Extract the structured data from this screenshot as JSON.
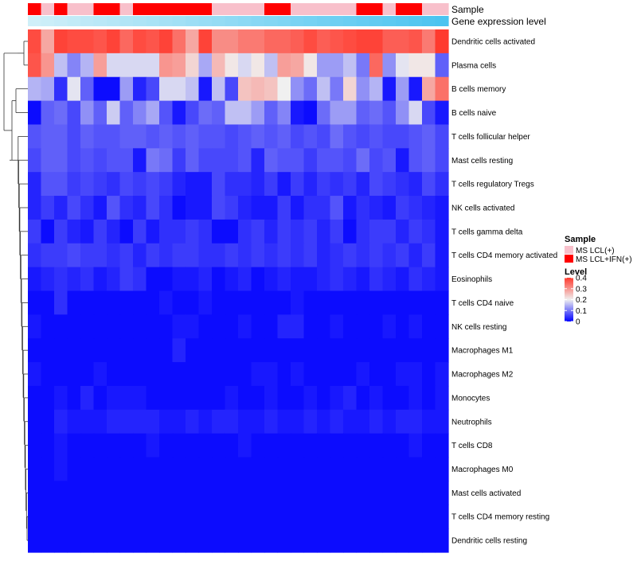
{
  "chart_data": {
    "type": "heatmap",
    "annotation_tracks": [
      {
        "label": "Sample",
        "values": [
          "MS LCL+IFN(+)",
          "MS LCL(+)",
          "MS LCL+IFN(+)",
          "MS LCL(+)",
          "MS LCL(+)",
          "MS LCL+IFN(+)",
          "MS LCL+IFN(+)",
          "MS LCL(+)",
          "MS LCL+IFN(+)",
          "MS LCL+IFN(+)",
          "MS LCL+IFN(+)",
          "MS LCL+IFN(+)",
          "MS LCL+IFN(+)",
          "MS LCL+IFN(+)",
          "MS LCL(+)",
          "MS LCL(+)",
          "MS LCL(+)",
          "MS LCL(+)",
          "MS LCL+IFN(+)",
          "MS LCL+IFN(+)",
          "MS LCL(+)",
          "MS LCL(+)",
          "MS LCL(+)",
          "MS LCL(+)",
          "MS LCL(+)",
          "MS LCL+IFN(+)",
          "MS LCL+IFN(+)",
          "MS LCL(+)",
          "MS LCL+IFN(+)",
          "MS LCL+IFN(+)",
          "MS LCL(+)",
          "MS LCL(+)"
        ]
      },
      {
        "label": "Gene expression level",
        "values": [
          0,
          0.03,
          0.06,
          0.1,
          0.13,
          0.16,
          0.19,
          0.23,
          0.26,
          0.29,
          0.32,
          0.35,
          0.39,
          0.42,
          0.45,
          0.48,
          0.52,
          0.55,
          0.58,
          0.61,
          0.65,
          0.68,
          0.71,
          0.74,
          0.77,
          0.81,
          0.84,
          0.87,
          0.9,
          0.94,
          0.97,
          1
        ]
      }
    ],
    "rows": [
      "Dendritic cells activated",
      "Plasma cells",
      "B cells memory",
      "B cells naive",
      "T cells follicular helper",
      "Mast cells resting",
      "T cells regulatory  Tregs",
      "NK cells activated",
      "T cells gamma delta",
      "T cells CD4 memory activated",
      "Eosinophils",
      "T cells CD4 naive",
      "NK cells resting",
      "Macrophages M1",
      "Macrophages M2",
      "Monocytes",
      "Neutrophils",
      "T cells CD8",
      "Macrophages M0",
      "Mast cells activated",
      "T cells CD4 memory resting",
      "Dendritic cells resting"
    ],
    "n_columns": 32,
    "values": [
      [
        0.38,
        0.28,
        0.39,
        0.38,
        0.38,
        0.37,
        0.39,
        0.35,
        0.38,
        0.37,
        0.39,
        0.34,
        0.28,
        0.39,
        0.31,
        0.31,
        0.33,
        0.33,
        0.35,
        0.35,
        0.36,
        0.38,
        0.36,
        0.37,
        0.38,
        0.39,
        0.39,
        0.36,
        0.36,
        0.37,
        0.33,
        0.4
      ],
      [
        0.37,
        0.3,
        0.16,
        0.11,
        0.15,
        0.29,
        0.18,
        0.18,
        0.18,
        0.18,
        0.3,
        0.29,
        0.23,
        0.14,
        0.26,
        0.21,
        0.18,
        0.21,
        0.16,
        0.29,
        0.28,
        0.21,
        0.13,
        0.13,
        0.16,
        0.1,
        0.35,
        0.12,
        0.19,
        0.21,
        0.21,
        0.08
      ],
      [
        0.15,
        0.14,
        0.04,
        0.19,
        0.08,
        0.01,
        0.01,
        0.13,
        0.03,
        0.06,
        0.18,
        0.18,
        0.16,
        0.02,
        0.16,
        0.06,
        0.25,
        0.26,
        0.25,
        0.2,
        0.12,
        0.09,
        0.16,
        0.1,
        0.23,
        0.12,
        0.15,
        0.02,
        0.13,
        0.02,
        0.28,
        0.34
      ],
      [
        0.01,
        0.08,
        0.09,
        0.06,
        0.12,
        0.08,
        0.17,
        0.08,
        0.11,
        0.14,
        0.07,
        0.02,
        0.06,
        0.09,
        0.08,
        0.16,
        0.16,
        0.13,
        0.08,
        0.11,
        0.02,
        0.01,
        0.09,
        0.13,
        0.13,
        0.08,
        0.09,
        0.07,
        0.12,
        0.18,
        0.06,
        0.02
      ],
      [
        0.07,
        0.08,
        0.08,
        0.06,
        0.08,
        0.07,
        0.07,
        0.08,
        0.08,
        0.07,
        0.08,
        0.07,
        0.08,
        0.07,
        0.07,
        0.06,
        0.07,
        0.08,
        0.07,
        0.08,
        0.06,
        0.07,
        0.06,
        0.09,
        0.07,
        0.06,
        0.07,
        0.06,
        0.06,
        0.07,
        0.08,
        0.06
      ],
      [
        0.06,
        0.08,
        0.08,
        0.06,
        0.07,
        0.06,
        0.07,
        0.07,
        0.02,
        0.1,
        0.09,
        0.05,
        0.08,
        0.06,
        0.06,
        0.06,
        0.07,
        0.03,
        0.08,
        0.07,
        0.07,
        0.05,
        0.07,
        0.07,
        0.06,
        0.09,
        0.06,
        0.07,
        0.02,
        0.07,
        0.08,
        0.06
      ],
      [
        0.03,
        0.07,
        0.07,
        0.05,
        0.06,
        0.05,
        0.04,
        0.06,
        0.05,
        0.06,
        0.05,
        0.03,
        0.02,
        0.02,
        0.06,
        0.04,
        0.04,
        0.03,
        0.05,
        0.02,
        0.05,
        0.03,
        0.05,
        0.04,
        0.05,
        0.03,
        0.06,
        0.05,
        0.04,
        0.03,
        0.06,
        0.04
      ],
      [
        0.03,
        0.05,
        0.03,
        0.06,
        0.04,
        0.02,
        0.07,
        0.04,
        0.03,
        0.06,
        0.04,
        0.01,
        0.02,
        0.02,
        0.06,
        0.05,
        0.03,
        0.02,
        0.02,
        0.05,
        0.02,
        0.04,
        0.04,
        0.07,
        0.02,
        0.04,
        0.03,
        0.02,
        0.05,
        0.04,
        0.03,
        0.02
      ],
      [
        0.05,
        0.01,
        0.05,
        0.03,
        0.02,
        0.05,
        0.03,
        0.01,
        0.05,
        0.02,
        0.04,
        0.04,
        0.05,
        0.04,
        0.01,
        0.01,
        0.04,
        0.05,
        0.03,
        0.05,
        0.04,
        0.05,
        0.03,
        0.05,
        0.01,
        0.04,
        0.05,
        0.05,
        0.03,
        0.05,
        0.04,
        0.02
      ],
      [
        0.04,
        0.05,
        0.05,
        0.06,
        0.05,
        0.05,
        0.04,
        0.05,
        0.03,
        0.05,
        0.04,
        0.05,
        0.05,
        0.04,
        0.04,
        0.05,
        0.04,
        0.05,
        0.04,
        0.05,
        0.04,
        0.05,
        0.03,
        0.04,
        0.05,
        0.04,
        0.05,
        0.04,
        0.05,
        0.03,
        0.05,
        0.02
      ],
      [
        0.02,
        0.03,
        0.04,
        0.03,
        0.04,
        0.02,
        0.03,
        0.05,
        0.04,
        0.01,
        0.01,
        0.02,
        0.02,
        0.03,
        0.01,
        0.02,
        0.03,
        0.01,
        0.02,
        0.03,
        0.02,
        0.02,
        0.03,
        0.04,
        0.03,
        0.02,
        0.04,
        0.03,
        0.02,
        0.04,
        0.03,
        0.02
      ],
      [
        0.01,
        0.01,
        0.04,
        0.01,
        0.01,
        0.01,
        0.01,
        0.01,
        0.01,
        0.01,
        0.02,
        0.01,
        0.01,
        0.02,
        0.01,
        0.01,
        0.01,
        0.01,
        0.01,
        0.01,
        0.02,
        0.01,
        0.01,
        0.01,
        0.01,
        0.01,
        0.01,
        0.01,
        0.01,
        0.01,
        0.01,
        0.01
      ],
      [
        0.02,
        0.01,
        0.01,
        0.01,
        0.01,
        0.01,
        0.01,
        0.01,
        0.01,
        0.01,
        0.01,
        0.02,
        0.02,
        0.01,
        0.01,
        0.01,
        0.02,
        0.01,
        0.01,
        0.03,
        0.03,
        0.01,
        0.01,
        0.02,
        0.01,
        0.01,
        0.01,
        0.02,
        0.01,
        0.02,
        0.01,
        0.01
      ],
      [
        0.01,
        0.01,
        0.01,
        0.01,
        0.01,
        0.01,
        0.01,
        0.01,
        0.01,
        0.01,
        0.01,
        0.03,
        0.01,
        0.01,
        0.01,
        0.01,
        0.01,
        0.01,
        0.01,
        0.01,
        0.01,
        0.01,
        0.01,
        0.01,
        0.01,
        0.01,
        0.01,
        0.01,
        0.01,
        0.01,
        0.01,
        0.01
      ],
      [
        0.02,
        0.01,
        0.01,
        0.01,
        0.01,
        0.02,
        0.01,
        0.01,
        0.01,
        0.01,
        0.01,
        0.01,
        0.01,
        0.01,
        0.01,
        0.01,
        0.01,
        0.02,
        0.02,
        0.01,
        0.02,
        0.01,
        0.01,
        0.01,
        0.01,
        0.02,
        0.01,
        0.01,
        0.02,
        0.02,
        0.01,
        0.02
      ],
      [
        0.01,
        0.01,
        0.02,
        0.01,
        0.03,
        0.01,
        0.02,
        0.02,
        0.02,
        0.01,
        0.01,
        0.01,
        0.01,
        0.01,
        0.01,
        0.02,
        0.01,
        0.01,
        0.02,
        0.01,
        0.01,
        0.02,
        0.01,
        0.02,
        0.03,
        0.01,
        0.02,
        0.01,
        0.01,
        0.02,
        0.01,
        0.02
      ],
      [
        0.01,
        0.01,
        0.03,
        0.02,
        0.02,
        0.02,
        0.03,
        0.03,
        0.03,
        0.03,
        0.02,
        0.02,
        0.03,
        0.02,
        0.03,
        0.03,
        0.02,
        0.02,
        0.03,
        0.02,
        0.02,
        0.03,
        0.02,
        0.03,
        0.02,
        0.02,
        0.03,
        0.02,
        0.03,
        0.03,
        0.02,
        0.02
      ],
      [
        0.01,
        0.01,
        0.02,
        0.01,
        0.01,
        0.01,
        0.01,
        0.01,
        0.01,
        0.02,
        0.01,
        0.01,
        0.01,
        0.01,
        0.01,
        0.01,
        0.02,
        0.01,
        0.01,
        0.01,
        0.01,
        0.01,
        0.01,
        0.01,
        0.01,
        0.01,
        0.01,
        0.01,
        0.01,
        0.02,
        0.01,
        0.01
      ],
      [
        0.01,
        0.01,
        0.02,
        0.01,
        0.01,
        0.01,
        0.01,
        0.01,
        0.01,
        0.01,
        0.01,
        0.01,
        0.01,
        0.01,
        0.01,
        0.01,
        0.01,
        0.01,
        0.01,
        0.01,
        0.01,
        0.01,
        0.01,
        0.01,
        0.01,
        0.01,
        0.01,
        0.01,
        0.01,
        0.01,
        0.01,
        0.01
      ],
      [
        0.01,
        0.01,
        0.01,
        0.01,
        0.01,
        0.01,
        0.01,
        0.01,
        0.01,
        0.01,
        0.01,
        0.01,
        0.01,
        0.01,
        0.01,
        0.01,
        0.01,
        0.01,
        0.01,
        0.01,
        0.01,
        0.01,
        0.01,
        0.01,
        0.01,
        0.01,
        0.01,
        0.01,
        0.01,
        0.01,
        0.01,
        0.01
      ],
      [
        0.01,
        0.01,
        0.01,
        0.01,
        0.01,
        0.01,
        0.01,
        0.01,
        0.01,
        0.01,
        0.01,
        0.01,
        0.01,
        0.01,
        0.01,
        0.01,
        0.01,
        0.01,
        0.01,
        0.01,
        0.01,
        0.01,
        0.01,
        0.01,
        0.01,
        0.01,
        0.01,
        0.01,
        0.01,
        0.01,
        0.01,
        0.01
      ],
      [
        0.01,
        0.01,
        0.01,
        0.01,
        0.01,
        0.01,
        0.01,
        0.01,
        0.01,
        0.01,
        0.01,
        0.01,
        0.01,
        0.01,
        0.01,
        0.01,
        0.01,
        0.01,
        0.01,
        0.01,
        0.01,
        0.01,
        0.01,
        0.01,
        0.01,
        0.01,
        0.01,
        0.01,
        0.01,
        0.01,
        0.01,
        0.01
      ]
    ],
    "color_scale": {
      "low": "#0000FF",
      "mid": "#F0F0F0",
      "high": "#FF3A2E",
      "domain": [
        0,
        0.2,
        0.4
      ]
    },
    "legend": {
      "sample_title": "Sample",
      "sample_entries": [
        {
          "label": "MS LCL(+)",
          "color": "#F8C0CB"
        },
        {
          "label": "MS LCL+IFN(+)",
          "color": "#FF0000"
        }
      ],
      "level_title": "Level",
      "level_ticks": [
        {
          "value": 0.4,
          "label": "0.4"
        },
        {
          "value": 0.3,
          "label": "0.3"
        },
        {
          "value": 0.2,
          "label": "0.2"
        },
        {
          "value": 0.1,
          "label": "0.1"
        },
        {
          "value": 0,
          "label": "0"
        }
      ]
    },
    "gene_expression_colors": {
      "start": "#CFEFF8",
      "end": "#4CC4F0"
    },
    "dendrogram": "row clustering tree"
  }
}
